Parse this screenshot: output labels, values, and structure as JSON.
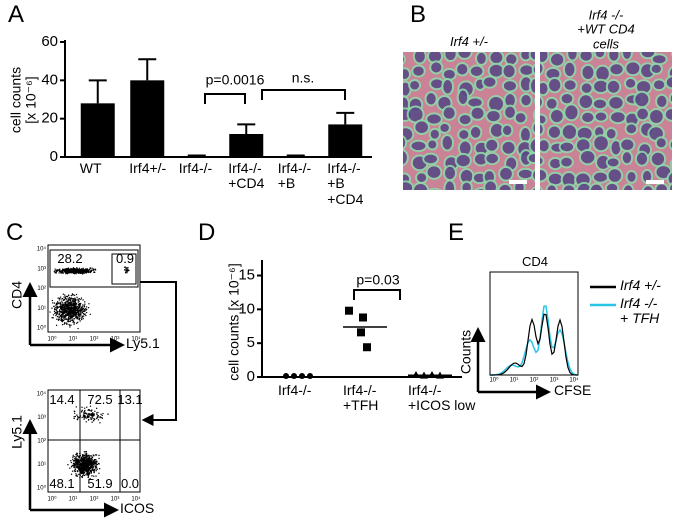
{
  "panel_labels": [
    "A",
    "B",
    "C",
    "D",
    "E"
  ],
  "chart_data": [
    {
      "type": "bar",
      "ylabel": "cell counts\n[x 10⁻⁶]",
      "categories": [
        "WT",
        "Irf4+/-",
        "Irf4-/-",
        "Irf4-/-\n+CD4",
        "Irf4-/-\n+B",
        "Irf4-/-\n+B\n+CD4"
      ],
      "values": [
        28,
        40,
        0.5,
        12,
        0.5,
        17
      ],
      "errors": [
        12,
        11,
        0.3,
        5,
        0.3,
        6
      ],
      "color": "#000000",
      "ylim": [
        0,
        60
      ],
      "yticks": [
        0,
        20,
        40,
        60
      ],
      "annotations": [
        "p=0.0016",
        "n.s."
      ]
    },
    {
      "type": "dot",
      "ylabel": "cell counts [x 10⁻⁶]",
      "categories": [
        "Irf4-/-",
        "Irf4-/-\n+TFH",
        "Irf4-/-\n+ICOS low"
      ],
      "values": [
        [
          0,
          0,
          0,
          0
        ],
        [
          9.8,
          8.8,
          6.6,
          4.4
        ],
        [
          0.3,
          0.2,
          0.3,
          0.2
        ]
      ],
      "means": [
        0,
        7.4,
        0.25
      ],
      "color": "#000000",
      "ylim": [
        0,
        17
      ],
      "yticks": [
        0,
        5,
        10,
        15
      ],
      "annotations": [
        "p=0.03"
      ]
    }
  ],
  "micrographs": {
    "labels": [
      "Irf4 +/-",
      "Irf4 -/-\n+WT CD4 cells"
    ]
  },
  "flow": {
    "plots": [
      {
        "ylabel": "CD4",
        "xlabel": "Ly5.1",
        "gates": [
          "28.2",
          "0.9"
        ]
      },
      {
        "ylabel": "Ly5.1",
        "xlabel": "ICOS",
        "gates": [
          "14.4",
          "72.5",
          "13.1",
          "48.1",
          "51.9",
          "0.0"
        ]
      }
    ],
    "ticks": [
      "10⁰",
      "10¹",
      "10²",
      "10³",
      "10⁴"
    ]
  },
  "histogram": {
    "title": "CD4",
    "ylabel": "Counts",
    "xlabel": "CFSE",
    "legend": [
      {
        "name": "Irf4 +/-",
        "color": "#000000"
      },
      {
        "name": "Irf4 -/-\n+ TFH",
        "color": "#29c5e6"
      }
    ]
  }
}
